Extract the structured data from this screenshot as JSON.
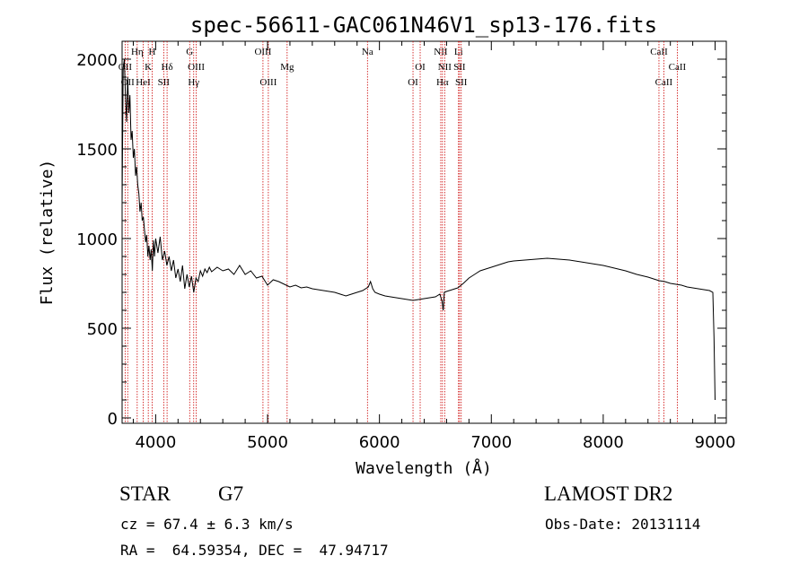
{
  "chart_data": {
    "type": "line",
    "title": "spec-56611-GAC061N46V1_sp13-176.fits",
    "xlabel": "Wavelength (Å)",
    "ylabel": "Flux (relative)",
    "xlim": [
      3700,
      9100
    ],
    "ylim": [
      -30,
      2100
    ],
    "xticks": [
      4000,
      5000,
      6000,
      7000,
      8000,
      9000
    ],
    "yticks": [
      0,
      500,
      1000,
      1500,
      2000
    ],
    "grid": false,
    "series": [
      {
        "points": [
          [
            3700,
            1200
          ],
          [
            3710,
            1950
          ],
          [
            3720,
            2000
          ],
          [
            3730,
            1800
          ],
          [
            3740,
            1650
          ],
          [
            3750,
            1900
          ],
          [
            3760,
            1700
          ],
          [
            3770,
            1800
          ],
          [
            3780,
            1550
          ],
          [
            3790,
            1600
          ],
          [
            3800,
            1450
          ],
          [
            3810,
            1500
          ],
          [
            3820,
            1350
          ],
          [
            3830,
            1400
          ],
          [
            3840,
            1300
          ],
          [
            3850,
            1250
          ],
          [
            3860,
            1150
          ],
          [
            3870,
            1200
          ],
          [
            3880,
            1100
          ],
          [
            3890,
            1120
          ],
          [
            3900,
            1050
          ],
          [
            3910,
            980
          ],
          [
            3920,
            1020
          ],
          [
            3930,
            900
          ],
          [
            3940,
            960
          ],
          [
            3950,
            880
          ],
          [
            3960,
            940
          ],
          [
            3970,
            820
          ],
          [
            3980,
            990
          ],
          [
            3990,
            900
          ],
          [
            4000,
            1000
          ],
          [
            4020,
            920
          ],
          [
            4040,
            1010
          ],
          [
            4060,
            880
          ],
          [
            4080,
            930
          ],
          [
            4100,
            850
          ],
          [
            4120,
            900
          ],
          [
            4140,
            820
          ],
          [
            4160,
            880
          ],
          [
            4180,
            780
          ],
          [
            4200,
            830
          ],
          [
            4220,
            760
          ],
          [
            4240,
            850
          ],
          [
            4260,
            720
          ],
          [
            4280,
            800
          ],
          [
            4300,
            730
          ],
          [
            4320,
            790
          ],
          [
            4340,
            700
          ],
          [
            4360,
            780
          ],
          [
            4380,
            760
          ],
          [
            4400,
            820
          ],
          [
            4420,
            790
          ],
          [
            4440,
            830
          ],
          [
            4460,
            810
          ],
          [
            4480,
            840
          ],
          [
            4500,
            815
          ],
          [
            4550,
            840
          ],
          [
            4600,
            820
          ],
          [
            4650,
            830
          ],
          [
            4700,
            800
          ],
          [
            4750,
            850
          ],
          [
            4800,
            800
          ],
          [
            4850,
            820
          ],
          [
            4900,
            780
          ],
          [
            4950,
            790
          ],
          [
            5000,
            740
          ],
          [
            5050,
            770
          ],
          [
            5100,
            760
          ],
          [
            5150,
            745
          ],
          [
            5200,
            730
          ],
          [
            5250,
            740
          ],
          [
            5300,
            725
          ],
          [
            5350,
            730
          ],
          [
            5400,
            720
          ],
          [
            5450,
            715
          ],
          [
            5500,
            710
          ],
          [
            5550,
            705
          ],
          [
            5600,
            700
          ],
          [
            5650,
            690
          ],
          [
            5700,
            680
          ],
          [
            5750,
            690
          ],
          [
            5800,
            700
          ],
          [
            5850,
            710
          ],
          [
            5900,
            730
          ],
          [
            5920,
            760
          ],
          [
            5940,
            720
          ],
          [
            5960,
            700
          ],
          [
            6000,
            690
          ],
          [
            6050,
            680
          ],
          [
            6100,
            675
          ],
          [
            6150,
            670
          ],
          [
            6200,
            665
          ],
          [
            6250,
            660
          ],
          [
            6300,
            655
          ],
          [
            6350,
            660
          ],
          [
            6400,
            665
          ],
          [
            6450,
            670
          ],
          [
            6500,
            675
          ],
          [
            6540,
            690
          ],
          [
            6560,
            650
          ],
          [
            6570,
            600
          ],
          [
            6580,
            700
          ],
          [
            6600,
            705
          ],
          [
            6650,
            715
          ],
          [
            6700,
            725
          ],
          [
            6750,
            750
          ],
          [
            6800,
            780
          ],
          [
            6850,
            800
          ],
          [
            6900,
            820
          ],
          [
            6950,
            830
          ],
          [
            7000,
            840
          ],
          [
            7050,
            850
          ],
          [
            7100,
            860
          ],
          [
            7150,
            870
          ],
          [
            7200,
            875
          ],
          [
            7300,
            880
          ],
          [
            7400,
            885
          ],
          [
            7500,
            890
          ],
          [
            7600,
            885
          ],
          [
            7700,
            880
          ],
          [
            7800,
            870
          ],
          [
            7900,
            860
          ],
          [
            8000,
            850
          ],
          [
            8100,
            835
          ],
          [
            8200,
            820
          ],
          [
            8300,
            800
          ],
          [
            8400,
            785
          ],
          [
            8500,
            765
          ],
          [
            8550,
            760
          ],
          [
            8600,
            750
          ],
          [
            8650,
            745
          ],
          [
            8700,
            740
          ],
          [
            8750,
            730
          ],
          [
            8800,
            725
          ],
          [
            8850,
            720
          ],
          [
            8900,
            715
          ],
          [
            8950,
            710
          ],
          [
            8980,
            700
          ],
          [
            8990,
            450
          ],
          [
            9000,
            100
          ]
        ]
      }
    ],
    "lines": [
      {
        "x": 3727,
        "label": "OII",
        "row": 1
      },
      {
        "x": 3750,
        "label": "OII",
        "row": 2
      },
      {
        "x": 3835,
        "label": "Hη",
        "row": 0
      },
      {
        "x": 3889,
        "label": "HeI",
        "row": 2
      },
      {
        "x": 3934,
        "label": "K",
        "row": 1
      },
      {
        "x": 3969,
        "label": "H",
        "row": 0
      },
      {
        "x": 4072,
        "label": "SII",
        "row": 2
      },
      {
        "x": 4102,
        "label": "Hδ",
        "row": 1
      },
      {
        "x": 4304,
        "label": "G",
        "row": 0
      },
      {
        "x": 4340,
        "label": "Hγ",
        "row": 2
      },
      {
        "x": 4363,
        "label": "OIII",
        "row": 1
      },
      {
        "x": 4959,
        "label": "OIII",
        "row": 0
      },
      {
        "x": 5007,
        "label": "OIII",
        "row": 2
      },
      {
        "x": 5175,
        "label": "Mg",
        "row": 1
      },
      {
        "x": 5893,
        "label": "Na",
        "row": 0
      },
      {
        "x": 6300,
        "label": "OI",
        "row": 2
      },
      {
        "x": 6364,
        "label": "OI",
        "row": 1
      },
      {
        "x": 6548,
        "label": "NII",
        "row": 0
      },
      {
        "x": 6563,
        "label": "Hα",
        "row": 2
      },
      {
        "x": 6583,
        "label": "NII",
        "row": 1
      },
      {
        "x": 6707,
        "label": "Li",
        "row": 0
      },
      {
        "x": 6716,
        "label": "SII",
        "row": 1
      },
      {
        "x": 6731,
        "label": "SII",
        "row": 2
      },
      {
        "x": 8498,
        "label": "CaII",
        "row": 0
      },
      {
        "x": 8542,
        "label": "CaII",
        "row": 2
      },
      {
        "x": 8662,
        "label": "CaII",
        "row": 1
      }
    ]
  },
  "info": {
    "class": "STAR",
    "subclass": "G7",
    "cz": "cz = 67.4 ± 6.3 km/s",
    "radec": "RA =  64.59354, DEC =  47.94717",
    "survey": "LAMOST DR2",
    "obsdate": "Obs-Date: 20131114"
  },
  "colors": {
    "line": "#000000",
    "marker": "#cc0000"
  }
}
